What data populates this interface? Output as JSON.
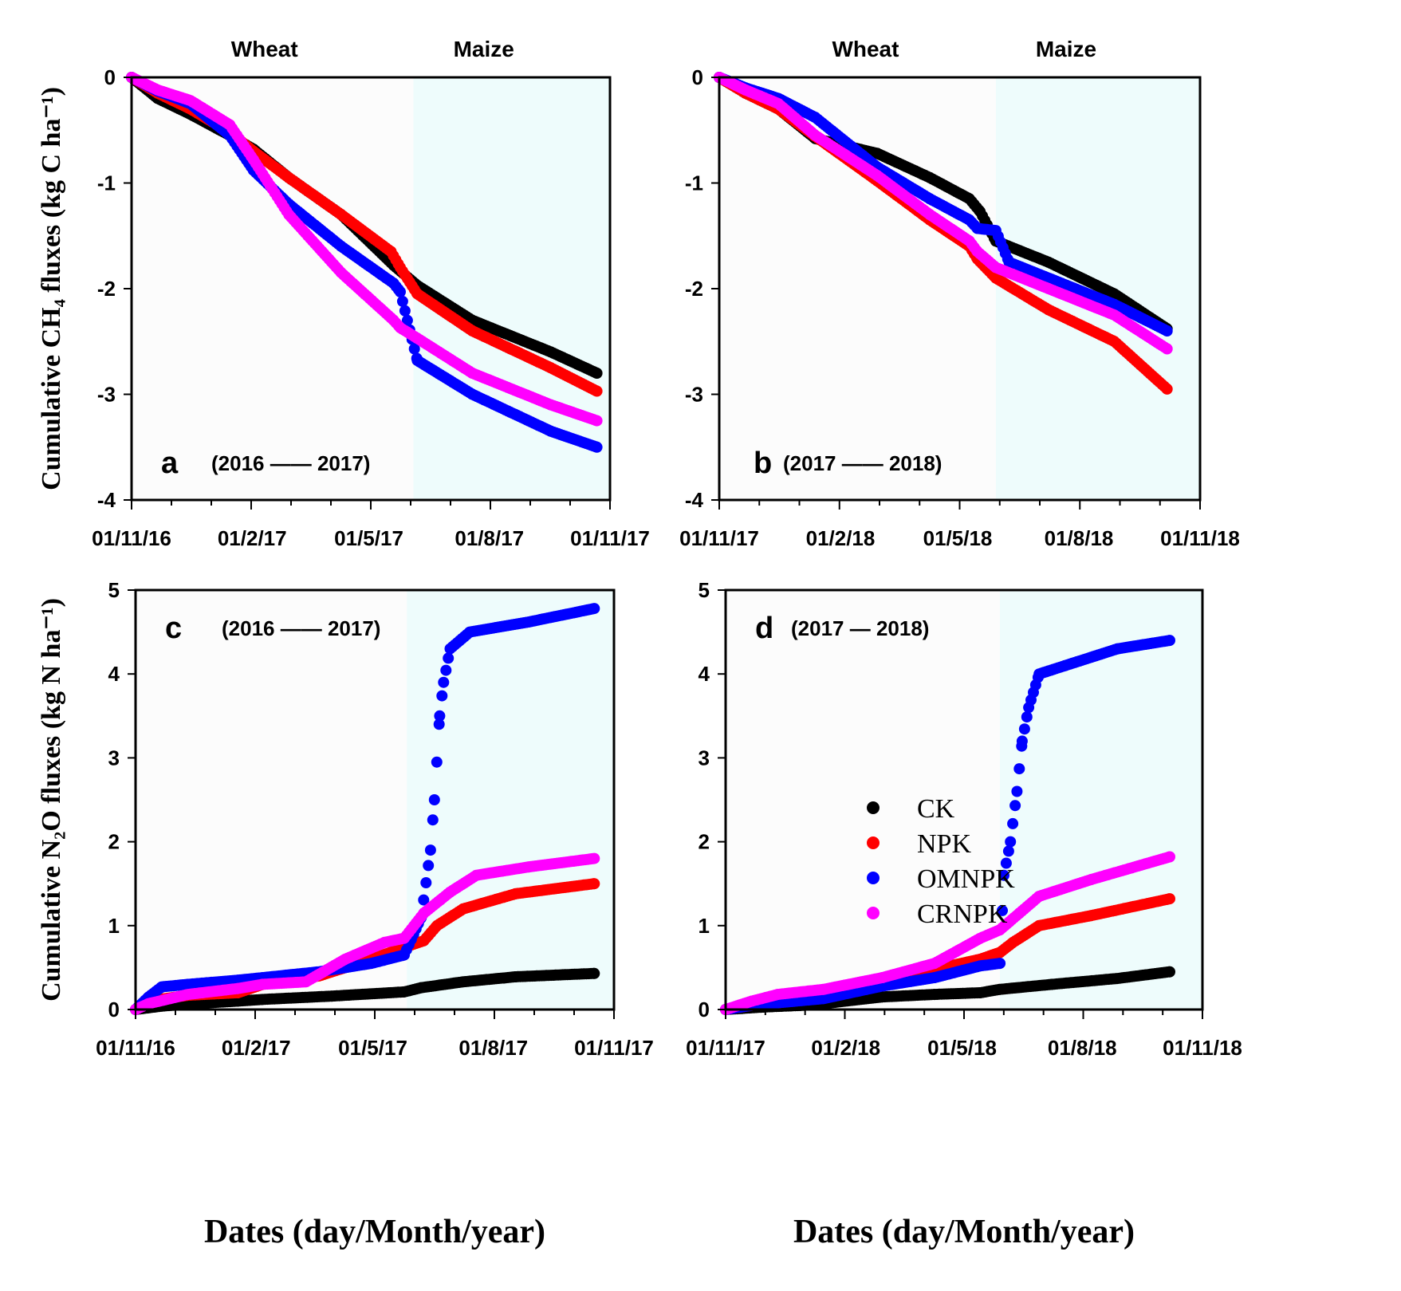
{
  "chart_data": [
    {
      "panel": "a",
      "type": "scatter",
      "period": "(2016 —— 2017)",
      "seasons": [
        "Wheat",
        "Maize"
      ],
      "maize_shading_start_day": 215,
      "ylabel": "Cumulative CH₄ fluxes (kg C ha⁻¹)",
      "xlabel": "",
      "ylim": [
        -4,
        0
      ],
      "yticks": [
        0,
        -1,
        -2,
        -3,
        -4
      ],
      "xlim_days": [
        0,
        365
      ],
      "xtick_days": [
        0,
        92,
        181,
        273,
        365
      ],
      "xtick_labels": [
        "01/11/16",
        "01/2/17",
        "01/5/17",
        "01/8/17",
        "01/11/17"
      ],
      "series": [
        {
          "name": "CK",
          "color": "#000000",
          "points": [
            [
              0,
              0
            ],
            [
              20,
              -0.2
            ],
            [
              45,
              -0.35
            ],
            [
              75,
              -0.55
            ],
            [
              93,
              -0.68
            ],
            [
              120,
              -0.95
            ],
            [
              160,
              -1.3
            ],
            [
              200,
              -1.78
            ],
            [
              218,
              -1.97
            ],
            [
              260,
              -2.3
            ],
            [
              320,
              -2.6
            ],
            [
              355,
              -2.8
            ]
          ]
        },
        {
          "name": "NPK",
          "color": "#ff0000",
          "points": [
            [
              0,
              0
            ],
            [
              20,
              -0.15
            ],
            [
              45,
              -0.3
            ],
            [
              75,
              -0.52
            ],
            [
              93,
              -0.7
            ],
            [
              120,
              -0.95
            ],
            [
              160,
              -1.3
            ],
            [
              198,
              -1.65
            ],
            [
              205,
              -1.8
            ],
            [
              218,
              -2.05
            ],
            [
              260,
              -2.4
            ],
            [
              320,
              -2.75
            ],
            [
              355,
              -2.97
            ]
          ]
        },
        {
          "name": "OMNPK",
          "color": "#0000ff",
          "points": [
            [
              0,
              0
            ],
            [
              20,
              -0.13
            ],
            [
              45,
              -0.25
            ],
            [
              75,
              -0.55
            ],
            [
              93,
              -0.88
            ],
            [
              120,
              -1.2
            ],
            [
              160,
              -1.6
            ],
            [
              200,
              -1.95
            ],
            [
              205,
              -2.03
            ],
            [
              218,
              -2.68
            ],
            [
              260,
              -3.0
            ],
            [
              320,
              -3.35
            ],
            [
              355,
              -3.5
            ]
          ]
        },
        {
          "name": "CRNPK",
          "color": "#ff00ff",
          "points": [
            [
              0,
              0
            ],
            [
              20,
              -0.12
            ],
            [
              45,
              -0.22
            ],
            [
              75,
              -0.45
            ],
            [
              93,
              -0.78
            ],
            [
              120,
              -1.3
            ],
            [
              160,
              -1.85
            ],
            [
              200,
              -2.3
            ],
            [
              205,
              -2.37
            ],
            [
              218,
              -2.47
            ],
            [
              260,
              -2.8
            ],
            [
              320,
              -3.1
            ],
            [
              355,
              -3.25
            ]
          ]
        }
      ]
    },
    {
      "panel": "b",
      "type": "scatter",
      "period": "(2017 —— 2018)",
      "seasons": [
        "Wheat",
        "Maize"
      ],
      "maize_shading_start_day": 210,
      "ylabel": "",
      "xlabel": "",
      "ylim": [
        -4,
        0
      ],
      "yticks": [
        0,
        -1,
        -2,
        -3,
        -4
      ],
      "xlim_days": [
        0,
        365
      ],
      "xtick_days": [
        0,
        92,
        181,
        273,
        365
      ],
      "xtick_labels": [
        "01/11/17",
        "01/2/18",
        "01/5/18",
        "01/8/18",
        "01/11/18"
      ],
      "series": [
        {
          "name": "CK",
          "color": "#000000",
          "points": [
            [
              0,
              0
            ],
            [
              20,
              -0.15
            ],
            [
              45,
              -0.3
            ],
            [
              73,
              -0.58
            ],
            [
              120,
              -0.72
            ],
            [
              160,
              -0.95
            ],
            [
              190,
              -1.15
            ],
            [
              198,
              -1.27
            ],
            [
              210,
              -1.55
            ],
            [
              250,
              -1.75
            ],
            [
              300,
              -2.05
            ],
            [
              340,
              -2.38
            ]
          ]
        },
        {
          "name": "NPK",
          "color": "#ff0000",
          "points": [
            [
              0,
              0
            ],
            [
              20,
              -0.15
            ],
            [
              45,
              -0.3
            ],
            [
              73,
              -0.56
            ],
            [
              120,
              -0.98
            ],
            [
              160,
              -1.35
            ],
            [
              190,
              -1.6
            ],
            [
              196,
              -1.72
            ],
            [
              210,
              -1.9
            ],
            [
              250,
              -2.2
            ],
            [
              300,
              -2.5
            ],
            [
              340,
              -2.95
            ]
          ]
        },
        {
          "name": "OMNPK",
          "color": "#0000ff",
          "points": [
            [
              0,
              0
            ],
            [
              20,
              -0.1
            ],
            [
              45,
              -0.2
            ],
            [
              73,
              -0.38
            ],
            [
              120,
              -0.85
            ],
            [
              160,
              -1.15
            ],
            [
              190,
              -1.35
            ],
            [
              196,
              -1.43
            ],
            [
              210,
              -1.45
            ],
            [
              220,
              -1.75
            ],
            [
              260,
              -1.95
            ],
            [
              300,
              -2.15
            ],
            [
              340,
              -2.4
            ]
          ]
        },
        {
          "name": "CRNPK",
          "color": "#ff00ff",
          "points": [
            [
              0,
              0
            ],
            [
              20,
              -0.12
            ],
            [
              45,
              -0.25
            ],
            [
              73,
              -0.55
            ],
            [
              120,
              -0.93
            ],
            [
              160,
              -1.3
            ],
            [
              190,
              -1.55
            ],
            [
              196,
              -1.65
            ],
            [
              210,
              -1.8
            ],
            [
              250,
              -2.0
            ],
            [
              300,
              -2.25
            ],
            [
              340,
              -2.57
            ]
          ]
        }
      ]
    },
    {
      "panel": "c",
      "type": "scatter",
      "period": "(2016 —— 2017)",
      "maize_shading_start_day": 207,
      "ylabel": "Cumulative N₂O fluxes (kg N ha⁻¹)",
      "xlabel": "Dates (day/Month/year)",
      "ylim": [
        0,
        5
      ],
      "yticks": [
        0,
        1,
        2,
        3,
        4,
        5
      ],
      "xlim_days": [
        0,
        365
      ],
      "xtick_days": [
        0,
        92,
        181,
        273,
        365
      ],
      "xtick_labels": [
        "01/11/16",
        "01/2/17",
        "01/5/17",
        "01/8/17",
        "01/11/17"
      ],
      "series": [
        {
          "name": "CK",
          "color": "#000000",
          "points": [
            [
              0,
              0
            ],
            [
              20,
              0.04
            ],
            [
              45,
              0.07
            ],
            [
              78,
              0.1
            ],
            [
              97,
              0.12
            ],
            [
              150,
              0.16
            ],
            [
              205,
              0.21
            ],
            [
              218,
              0.26
            ],
            [
              250,
              0.33
            ],
            [
              290,
              0.39
            ],
            [
              350,
              0.43
            ]
          ]
        },
        {
          "name": "NPK",
          "color": "#ff0000",
          "points": [
            [
              0,
              0
            ],
            [
              10,
              0.1
            ],
            [
              40,
              0.17
            ],
            [
              78,
              0.2
            ],
            [
              97,
              0.3
            ],
            [
              140,
              0.4
            ],
            [
              180,
              0.6
            ],
            [
              205,
              0.74
            ],
            [
              220,
              0.82
            ],
            [
              230,
              1.0
            ],
            [
              250,
              1.2
            ],
            [
              290,
              1.38
            ],
            [
              350,
              1.5
            ]
          ]
        },
        {
          "name": "OMNPK",
          "color": "#0000ff",
          "points": [
            [
              0,
              0
            ],
            [
              10,
              0.15
            ],
            [
              20,
              0.27
            ],
            [
              40,
              0.3
            ],
            [
              78,
              0.35
            ],
            [
              97,
              0.38
            ],
            [
              140,
              0.45
            ],
            [
              180,
              0.55
            ],
            [
              205,
              0.65
            ],
            [
              218,
              1.1
            ],
            [
              225,
              1.9
            ],
            [
              228,
              2.5
            ],
            [
              232,
              3.5
            ],
            [
              235,
              3.9
            ],
            [
              240,
              4.3
            ],
            [
              255,
              4.5
            ],
            [
              300,
              4.62
            ],
            [
              350,
              4.78
            ]
          ]
        },
        {
          "name": "CRNPK",
          "color": "#ff00ff",
          "points": [
            [
              0,
              0
            ],
            [
              10,
              0.07
            ],
            [
              40,
              0.18
            ],
            [
              78,
              0.25
            ],
            [
              97,
              0.3
            ],
            [
              130,
              0.33
            ],
            [
              160,
              0.6
            ],
            [
              190,
              0.8
            ],
            [
              205,
              0.85
            ],
            [
              220,
              1.15
            ],
            [
              240,
              1.4
            ],
            [
              260,
              1.6
            ],
            [
              300,
              1.7
            ],
            [
              350,
              1.8
            ]
          ]
        }
      ]
    },
    {
      "panel": "d",
      "type": "scatter",
      "period": "(2017 — 2018)",
      "maize_shading_start_day": 210,
      "ylabel": "",
      "xlabel": "Dates (day/Month/year)",
      "ylim": [
        0,
        5
      ],
      "yticks": [
        0,
        1,
        2,
        3,
        4,
        5
      ],
      "xlim_days": [
        0,
        365
      ],
      "xtick_days": [
        0,
        92,
        181,
        273,
        365
      ],
      "xtick_labels": [
        "01/11/17",
        "01/2/18",
        "01/5/18",
        "01/8/18",
        "01/11/18"
      ],
      "legend": {
        "entries": [
          "CK",
          "NPK",
          "OMNPK",
          "CRNPK"
        ],
        "placement": "left-center"
      },
      "series": [
        {
          "name": "CK",
          "color": "#000000",
          "points": [
            [
              0,
              0
            ],
            [
              30,
              0.03
            ],
            [
              60,
              0.05
            ],
            [
              75,
              0.07
            ],
            [
              120,
              0.15
            ],
            [
              160,
              0.18
            ],
            [
              195,
              0.2
            ],
            [
              210,
              0.24
            ],
            [
              250,
              0.3
            ],
            [
              300,
              0.37
            ],
            [
              340,
              0.45
            ]
          ]
        },
        {
          "name": "NPK",
          "color": "#ff0000",
          "points": [
            [
              0,
              0
            ],
            [
              20,
              0.05
            ],
            [
              40,
              0.08
            ],
            [
              75,
              0.15
            ],
            [
              120,
              0.3
            ],
            [
              160,
              0.48
            ],
            [
              195,
              0.6
            ],
            [
              210,
              0.68
            ],
            [
              220,
              0.8
            ],
            [
              240,
              1.0
            ],
            [
              280,
              1.12
            ],
            [
              340,
              1.32
            ]
          ]
        },
        {
          "name": "OMNPK",
          "color": "#0000ff",
          "points": [
            [
              0,
              0
            ],
            [
              20,
              0.05
            ],
            [
              40,
              0.08
            ],
            [
              75,
              0.13
            ],
            [
              120,
              0.28
            ],
            [
              160,
              0.38
            ],
            [
              195,
              0.52
            ],
            [
              210,
              0.55
            ],
            [
              213,
              1.6
            ],
            [
              218,
              2.0
            ],
            [
              223,
              2.6
            ],
            [
              227,
              3.2
            ],
            [
              232,
              3.6
            ],
            [
              240,
              4.0
            ],
            [
              260,
              4.1
            ],
            [
              300,
              4.3
            ],
            [
              340,
              4.4
            ]
          ]
        },
        {
          "name": "CRNPK",
          "color": "#ff00ff",
          "points": [
            [
              0,
              0
            ],
            [
              20,
              0.1
            ],
            [
              40,
              0.18
            ],
            [
              75,
              0.24
            ],
            [
              120,
              0.38
            ],
            [
              160,
              0.55
            ],
            [
              195,
              0.85
            ],
            [
              210,
              0.95
            ],
            [
              225,
              1.15
            ],
            [
              240,
              1.35
            ],
            [
              280,
              1.55
            ],
            [
              340,
              1.82
            ]
          ]
        }
      ]
    }
  ]
}
